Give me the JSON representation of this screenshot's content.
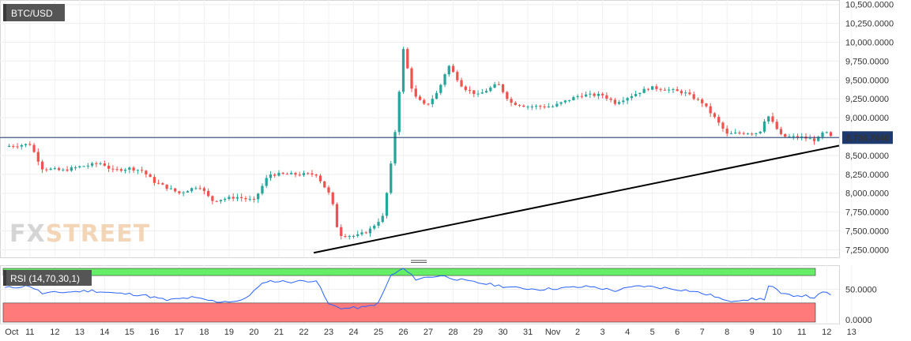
{
  "chart_data": [
    {
      "type": "candlestick",
      "title": "BTC/USD",
      "ylim": [
        7150,
        10560
      ],
      "y_ticks": [
        {
          "value": 7250,
          "label": "7,250.0000"
        },
        {
          "value": 7500,
          "label": "7,500.0000"
        },
        {
          "value": 7750,
          "label": "7,750.0000"
        },
        {
          "value": 8000,
          "label": "8,000.0000"
        },
        {
          "value": 8250,
          "label": "8,250.0000"
        },
        {
          "value": 8500,
          "label": "8,500.0000"
        },
        {
          "value": 8750,
          "label": "8,750.0000"
        },
        {
          "value": 9000,
          "label": "9,000.0000"
        },
        {
          "value": 9250,
          "label": "9,250.0000"
        },
        {
          "value": 9500,
          "label": "9,500.0000"
        },
        {
          "value": 9750,
          "label": "9,750.0000"
        },
        {
          "value": 10000,
          "label": "10,000.0000"
        },
        {
          "value": 10250,
          "label": "10,250.0000"
        },
        {
          "value": 10500,
          "label": "10,500.0000"
        }
      ],
      "x_labels": [
        "Oct",
        "11",
        "12",
        "13",
        "14",
        "15",
        "16",
        "17",
        "18",
        "19",
        "20",
        "21",
        "22",
        "23",
        "24",
        "25",
        "26",
        "27",
        "28",
        "29",
        "30",
        "31",
        "Nov",
        "2",
        "3",
        "4",
        "5",
        "6",
        "7",
        "8",
        "9",
        "10",
        "11",
        "12",
        "13"
      ],
      "x_range_days": [
        -0.2,
        33.5
      ],
      "current_price": {
        "value": 8736.764,
        "label": "8,736.7640"
      },
      "trendline": {
        "from": {
          "day": 12.4,
          "value": 7210
        },
        "to": {
          "day": 33.5,
          "value": 8630
        }
      },
      "candle_color_up": "#26a69a",
      "candle_color_down": "#ef5350",
      "keypoints": [
        {
          "day": 0.0,
          "price": 8620
        },
        {
          "day": 1.0,
          "price": 8650
        },
        {
          "day": 1.5,
          "price": 8330
        },
        {
          "day": 2.3,
          "price": 8300
        },
        {
          "day": 3.0,
          "price": 8350
        },
        {
          "day": 3.9,
          "price": 8400
        },
        {
          "day": 4.3,
          "price": 8300
        },
        {
          "day": 5.0,
          "price": 8330
        },
        {
          "day": 5.5,
          "price": 8300
        },
        {
          "day": 6.0,
          "price": 8150
        },
        {
          "day": 7.0,
          "price": 8000
        },
        {
          "day": 7.8,
          "price": 8100
        },
        {
          "day": 8.3,
          "price": 7900
        },
        {
          "day": 9.3,
          "price": 7950
        },
        {
          "day": 10.0,
          "price": 7900
        },
        {
          "day": 10.6,
          "price": 8250
        },
        {
          "day": 11.3,
          "price": 8250
        },
        {
          "day": 12.0,
          "price": 8250
        },
        {
          "day": 12.5,
          "price": 8250
        },
        {
          "day": 13.1,
          "price": 7950
        },
        {
          "day": 13.4,
          "price": 7450
        },
        {
          "day": 14.1,
          "price": 7430
        },
        {
          "day": 14.6,
          "price": 7500
        },
        {
          "day": 15.2,
          "price": 7700
        },
        {
          "day": 15.6,
          "price": 8600
        },
        {
          "day": 16.0,
          "price": 9900
        },
        {
          "day": 16.4,
          "price": 9300
        },
        {
          "day": 16.9,
          "price": 9150
        },
        {
          "day": 17.4,
          "price": 9350
        },
        {
          "day": 17.8,
          "price": 9700
        },
        {
          "day": 18.4,
          "price": 9400
        },
        {
          "day": 19.0,
          "price": 9300
        },
        {
          "day": 19.8,
          "price": 9450
        },
        {
          "day": 20.3,
          "price": 9200
        },
        {
          "day": 21.0,
          "price": 9150
        },
        {
          "day": 22.0,
          "price": 9150
        },
        {
          "day": 23.1,
          "price": 9300
        },
        {
          "day": 24.0,
          "price": 9300
        },
        {
          "day": 24.5,
          "price": 9200
        },
        {
          "day": 25.2,
          "price": 9300
        },
        {
          "day": 25.9,
          "price": 9400
        },
        {
          "day": 26.5,
          "price": 9380
        },
        {
          "day": 27.3,
          "price": 9330
        },
        {
          "day": 28.0,
          "price": 9200
        },
        {
          "day": 28.5,
          "price": 9000
        },
        {
          "day": 29.0,
          "price": 8780
        },
        {
          "day": 29.6,
          "price": 8800
        },
        {
          "day": 30.3,
          "price": 8800
        },
        {
          "day": 30.6,
          "price": 9050
        },
        {
          "day": 31.2,
          "price": 8750
        },
        {
          "day": 32.0,
          "price": 8740
        },
        {
          "day": 32.6,
          "price": 8700
        },
        {
          "day": 32.9,
          "price": 8820
        },
        {
          "day": 33.2,
          "price": 8737
        }
      ]
    },
    {
      "type": "line",
      "title": "RSI (14,70,30,1)",
      "ylim": [
        0,
        85
      ],
      "y_ticks": [
        {
          "value": 50,
          "label": "50.0000"
        },
        {
          "value": 0,
          "label": "0.0000"
        }
      ],
      "overbought": 70,
      "oversold": 30,
      "line_color": "#2962ff",
      "overbought_color": "#66ee66",
      "oversold_color": "#ff7b7b",
      "keypoints": [
        {
          "day": 0.0,
          "rsi": 52
        },
        {
          "day": 1.0,
          "rsi": 55
        },
        {
          "day": 1.5,
          "rsi": 44
        },
        {
          "day": 2.5,
          "rsi": 46
        },
        {
          "day": 3.5,
          "rsi": 48
        },
        {
          "day": 4.5,
          "rsi": 44
        },
        {
          "day": 5.5,
          "rsi": 42
        },
        {
          "day": 6.5,
          "rsi": 34
        },
        {
          "day": 7.5,
          "rsi": 38
        },
        {
          "day": 8.5,
          "rsi": 32
        },
        {
          "day": 9.5,
          "rsi": 33
        },
        {
          "day": 10.5,
          "rsi": 62
        },
        {
          "day": 11.5,
          "rsi": 61
        },
        {
          "day": 12.5,
          "rsi": 63
        },
        {
          "day": 13.0,
          "rsi": 28
        },
        {
          "day": 13.6,
          "rsi": 22
        },
        {
          "day": 14.5,
          "rsi": 24
        },
        {
          "day": 15.0,
          "rsi": 30
        },
        {
          "day": 15.5,
          "rsi": 70
        },
        {
          "day": 16.0,
          "rsi": 80
        },
        {
          "day": 16.5,
          "rsi": 65
        },
        {
          "day": 17.5,
          "rsi": 70
        },
        {
          "day": 18.5,
          "rsi": 62
        },
        {
          "day": 19.5,
          "rsi": 57
        },
        {
          "day": 20.5,
          "rsi": 52
        },
        {
          "day": 21.5,
          "rsi": 50
        },
        {
          "day": 22.5,
          "rsi": 52
        },
        {
          "day": 23.5,
          "rsi": 54
        },
        {
          "day": 24.5,
          "rsi": 48
        },
        {
          "day": 25.5,
          "rsi": 55
        },
        {
          "day": 26.5,
          "rsi": 52
        },
        {
          "day": 27.5,
          "rsi": 48
        },
        {
          "day": 28.5,
          "rsi": 40
        },
        {
          "day": 29.0,
          "rsi": 32
        },
        {
          "day": 29.5,
          "rsi": 35
        },
        {
          "day": 30.5,
          "rsi": 36
        },
        {
          "day": 30.7,
          "rsi": 58
        },
        {
          "day": 31.2,
          "rsi": 42
        },
        {
          "day": 32.0,
          "rsi": 41
        },
        {
          "day": 32.5,
          "rsi": 38
        },
        {
          "day": 32.9,
          "rsi": 46
        },
        {
          "day": 33.2,
          "rsi": 42
        }
      ]
    }
  ],
  "branding": {
    "logo": "FXSTREET"
  },
  "colors": {
    "grid": "#eeeeee",
    "axis_text": "#333333",
    "price_line": "#1e3a6e",
    "price_label_bg": "#1e3a6e"
  }
}
